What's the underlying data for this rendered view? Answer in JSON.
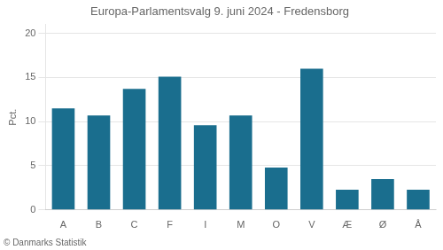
{
  "chart_data": {
    "type": "bar",
    "title": "Europa-Parlamentsvalg 9. juni 2024 - Fredensborg",
    "categories": [
      "A",
      "B",
      "C",
      "F",
      "I",
      "M",
      "O",
      "V",
      "Æ",
      "Ø",
      "Å"
    ],
    "values": [
      11.5,
      10.7,
      13.7,
      15.1,
      9.6,
      10.7,
      4.8,
      16.0,
      2.3,
      3.5,
      2.3
    ],
    "color": "#1a6e8e",
    "ylabel": "Pct.",
    "ylim": [
      0,
      21
    ],
    "yticks": [
      0,
      5,
      10,
      15,
      20
    ],
    "grid": true,
    "annotations": [
      "© Danmarks Statistik"
    ]
  }
}
